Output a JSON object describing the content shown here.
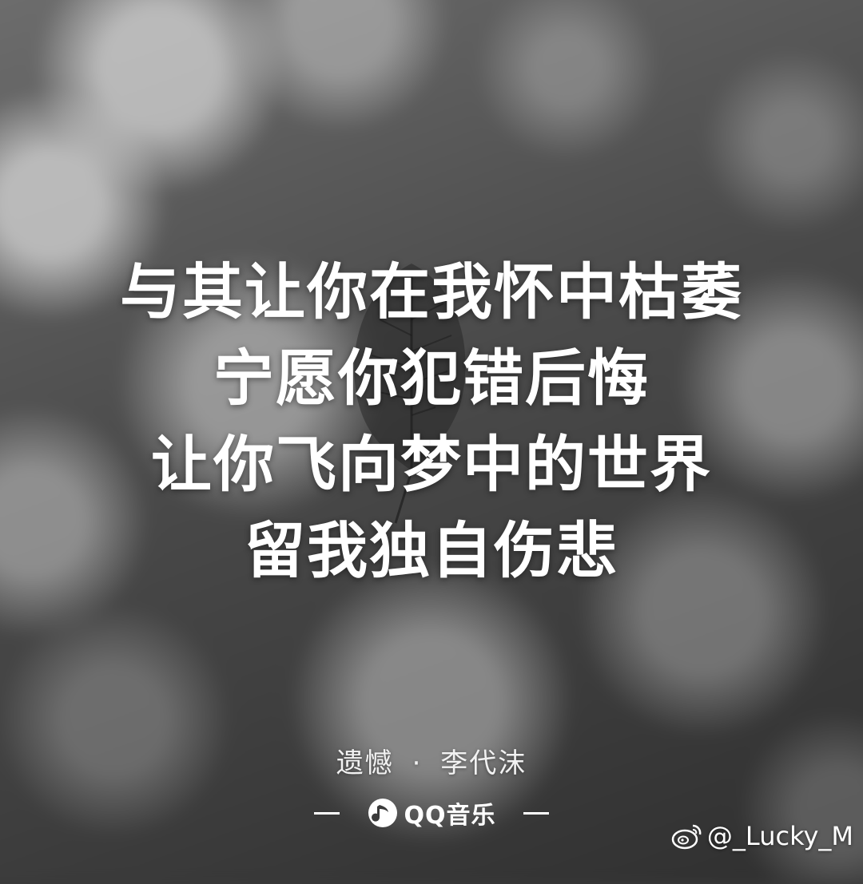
{
  "lyrics": {
    "lines": [
      "与其让你在我怀中枯萎",
      "宁愿你犯错后悔",
      "让你飞向梦中的世界",
      "留我独自伤悲"
    ]
  },
  "credit": {
    "song": "遗憾",
    "separator": "·",
    "artist": "李代沫"
  },
  "brand": {
    "name": "QQ音乐",
    "icon": "qq-music-icon"
  },
  "watermark": {
    "handle": "@_Lucky_M",
    "icon": "weibo-icon"
  }
}
